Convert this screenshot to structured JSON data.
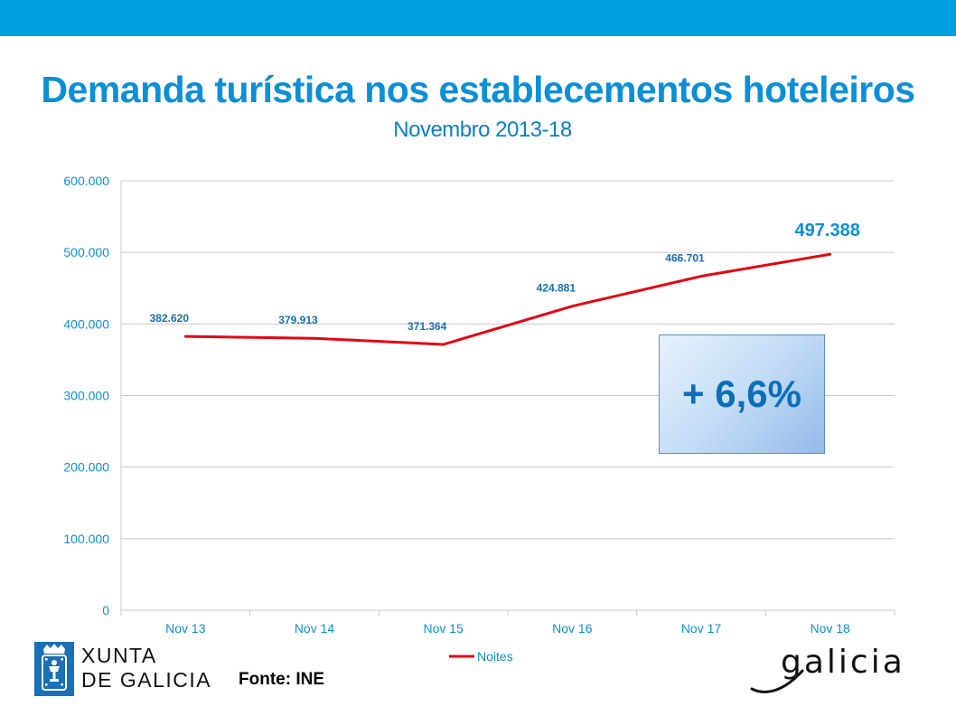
{
  "colors": {
    "top_bar": "#00a0e3",
    "title": "#0b8fd6",
    "subtitle": "#0b7fc7",
    "axis_text": "#0b8fd6",
    "line": "#e30613",
    "gridline": "#c8c8c8",
    "data_label": "#1a6fae",
    "callout_text": "#0b6fb8"
  },
  "header": {
    "title": "Demanda turística nos establecementos hoteleiros",
    "subtitle": "Novembro 2013-18"
  },
  "chart_data": {
    "type": "line",
    "categories": [
      "Nov 13",
      "Nov 14",
      "Nov 15",
      "Nov 16",
      "Nov 17",
      "Nov 18"
    ],
    "series": [
      {
        "name": "Noites",
        "values": [
          382620,
          379913,
          371364,
          424881,
          466701,
          497388
        ]
      }
    ],
    "data_labels": [
      "382.620",
      "379.913",
      "371.364",
      "424.881",
      "466.701",
      "497.388"
    ],
    "y_ticks": [
      0,
      100000,
      200000,
      300000,
      400000,
      500000,
      600000
    ],
    "y_tick_labels": [
      "0",
      "100.000",
      "200.000",
      "300.000",
      "400.000",
      "500.000",
      "600.000"
    ],
    "ylim": [
      0,
      600000
    ],
    "grid": true,
    "legend_position": "bottom"
  },
  "callout": {
    "text": "+ 6,6%"
  },
  "footer": {
    "source": "Fonte: INE",
    "xunta_logo_text": "XUNTA\nDE GALICIA",
    "galicia_logo_text": "galicia",
    "emblem_icon": "galicia-coat-of-arms-icon"
  }
}
